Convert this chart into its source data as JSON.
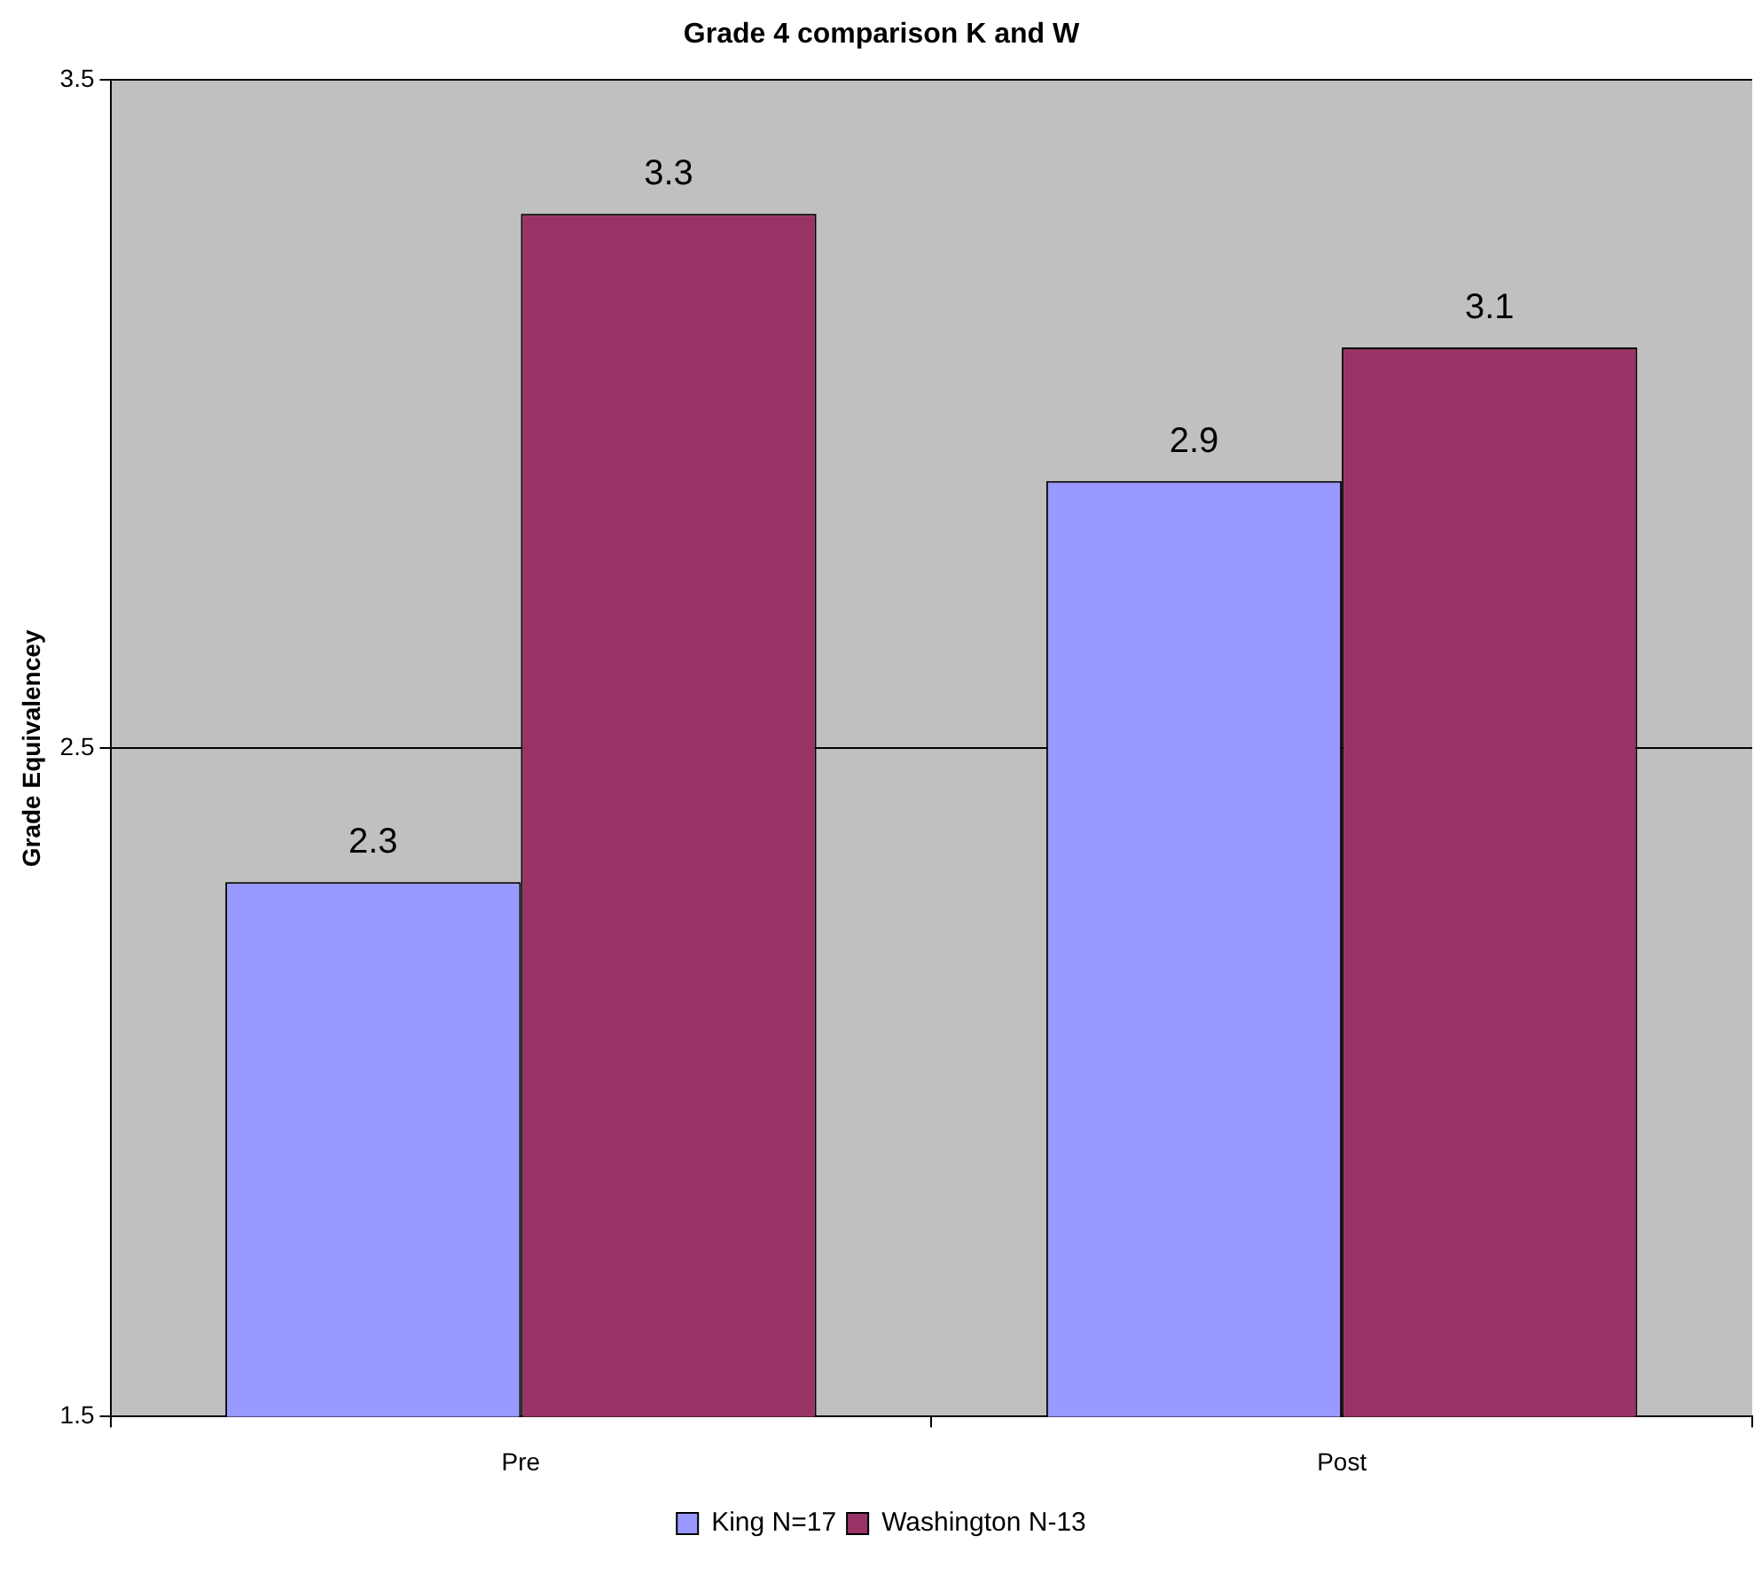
{
  "chart_data": {
    "type": "bar",
    "title": "Grade 4 comparison K and W",
    "ylabel": "Grade Equivalencey",
    "categories": [
      "Pre",
      "Post"
    ],
    "series": [
      {
        "name": "King N=17",
        "color": "#9999ff",
        "values": [
          2.3,
          2.9
        ]
      },
      {
        "name": "Washington N-13",
        "color": "#993366",
        "values": [
          3.3,
          3.1
        ]
      }
    ],
    "ylim": [
      1.5,
      3.5
    ],
    "yticks": [
      1.5,
      2.5,
      3.5
    ],
    "grid": "y",
    "legend": "bottom",
    "data_labels": true
  }
}
